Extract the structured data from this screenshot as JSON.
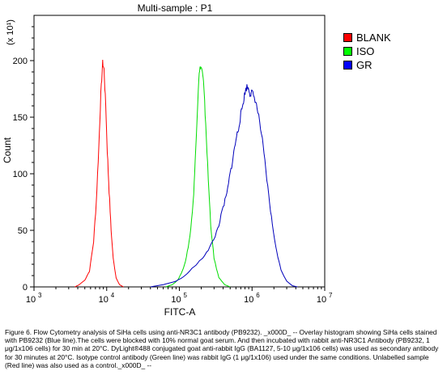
{
  "chart_data": {
    "type": "area",
    "title": "Multi-sample : P1",
    "xlabel": "FITC-A",
    "ylabel": "Count",
    "y_multiplier": "(x 10¹)",
    "x_scale": "log",
    "xlim": [
      1000,
      10000000
    ],
    "ylim": [
      0,
      240
    ],
    "x_ticks": [
      {
        "value": 1000,
        "base": "10",
        "exp": "3"
      },
      {
        "value": 10000,
        "base": "10",
        "exp": "4"
      },
      {
        "value": 100000,
        "base": "10",
        "exp": "5"
      },
      {
        "value": 1000000,
        "base": "10",
        "exp": "6"
      },
      {
        "value": 10000000,
        "base": "10",
        "exp": "7"
      }
    ],
    "y_ticks": [
      0,
      50,
      100,
      150,
      200
    ],
    "grid": false,
    "legend_position": "right",
    "series": [
      {
        "name": "BLANK",
        "color": "#ff0000",
        "swatch": "#ff0000",
        "points": [
          [
            3650,
            0
          ],
          [
            4200,
            2
          ],
          [
            5000,
            6
          ],
          [
            5800,
            14
          ],
          [
            6600,
            40
          ],
          [
            7200,
            75
          ],
          [
            7800,
            125
          ],
          [
            8300,
            170
          ],
          [
            8800,
            198
          ],
          [
            9200,
            192
          ],
          [
            9700,
            160
          ],
          [
            10200,
            120
          ],
          [
            10800,
            85
          ],
          [
            11500,
            50
          ],
          [
            12300,
            25
          ],
          [
            13500,
            8
          ],
          [
            15000,
            2
          ],
          [
            17000,
            0
          ]
        ]
      },
      {
        "name": "ISO",
        "color": "#00dd00",
        "swatch": "#00ff00",
        "points": [
          [
            65000,
            0
          ],
          [
            80000,
            2
          ],
          [
            95000,
            6
          ],
          [
            110000,
            14
          ],
          [
            125000,
            26
          ],
          [
            140000,
            45
          ],
          [
            155000,
            75
          ],
          [
            165000,
            110
          ],
          [
            175000,
            150
          ],
          [
            185000,
            185
          ],
          [
            195000,
            195
          ],
          [
            205000,
            192
          ],
          [
            215000,
            180
          ],
          [
            230000,
            145
          ],
          [
            250000,
            95
          ],
          [
            270000,
            55
          ],
          [
            300000,
            25
          ],
          [
            350000,
            8
          ],
          [
            420000,
            2
          ],
          [
            500000,
            0
          ]
        ]
      },
      {
        "name": "GR",
        "color": "#0000bb",
        "swatch": "#0000ff",
        "points": [
          [
            40000,
            0
          ],
          [
            60000,
            2
          ],
          [
            90000,
            5
          ],
          [
            120000,
            10
          ],
          [
            160000,
            18
          ],
          [
            200000,
            24
          ],
          [
            250000,
            33
          ],
          [
            300000,
            42
          ],
          [
            350000,
            55
          ],
          [
            400000,
            70
          ],
          [
            450000,
            82
          ],
          [
            500000,
            100
          ],
          [
            550000,
            115
          ],
          [
            600000,
            130
          ],
          [
            650000,
            140
          ],
          [
            700000,
            152
          ],
          [
            750000,
            162
          ],
          [
            800000,
            172
          ],
          [
            850000,
            177
          ],
          [
            900000,
            175
          ],
          [
            950000,
            170
          ],
          [
            1000000,
            172
          ],
          [
            1100000,
            166
          ],
          [
            1200000,
            155
          ],
          [
            1350000,
            135
          ],
          [
            1500000,
            110
          ],
          [
            1700000,
            80
          ],
          [
            1900000,
            55
          ],
          [
            2200000,
            30
          ],
          [
            2500000,
            15
          ],
          [
            3000000,
            5
          ],
          [
            3600000,
            1
          ],
          [
            4200000,
            0
          ]
        ]
      }
    ]
  },
  "caption": "Figure 6. Flow Cytometry analysis of SiHa cells using anti-NR3C1 antibody (PB9232). _x000D_ -- Overlay histogram showing SiHa cells stained with PB9232 (Blue line).The cells were blocked with 10% normal goat serum. And then incubated with rabbit anti-NR3C1 Antibody (PB9232, 1 μg/1x106 cells) for 30 min at 20°C. DyLight®488 conjugated goat anti-rabbit IgG (BA1127, 5-10 μg/1x106 cells) was used as secondary antibody for 30 minutes at 20°C. Isotype control antibody (Green line) was rabbit IgG (1 μg/1x106) used under the same conditions. Unlabelled sample (Red line) was also used as a control._x000D_ --"
}
